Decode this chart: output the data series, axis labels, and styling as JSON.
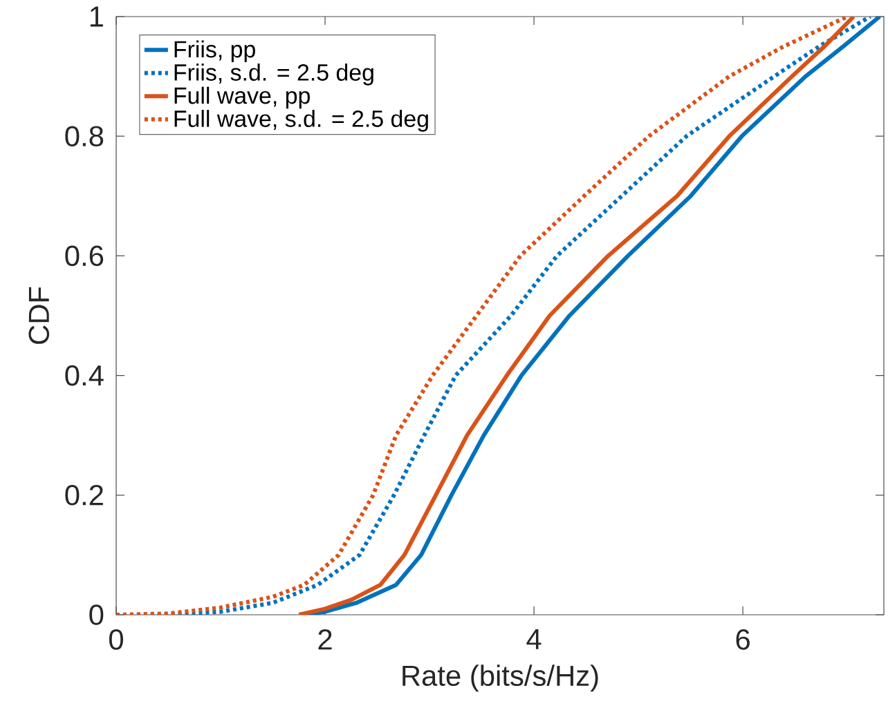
{
  "chart_data": {
    "type": "line",
    "xlabel": "Rate (bits/s/Hz)",
    "ylabel": "CDF",
    "xlim": [
      0,
      7.35
    ],
    "ylim": [
      0,
      1
    ],
    "xticks": [
      0,
      2,
      4,
      6
    ],
    "yticks": [
      0,
      0.2,
      0.4,
      0.6,
      0.8,
      1
    ],
    "legend": "top left",
    "series": [
      {
        "name": "Friis, pp",
        "color": "#0072bd",
        "line_style": "solid",
        "x": [
          1.8,
          2.0,
          2.3,
          2.68,
          2.92,
          3.21,
          3.52,
          3.88,
          4.34,
          4.9,
          5.5,
          5.99,
          6.6,
          6.96,
          7.31
        ],
        "values": [
          0,
          0.005,
          0.02,
          0.05,
          0.1,
          0.2,
          0.3,
          0.4,
          0.5,
          0.6,
          0.7,
          0.8,
          0.9,
          0.95,
          1
        ]
      },
      {
        "name": "Friis, s.d. = 2.5 deg",
        "color": "#0072bd",
        "line_style": "dotted",
        "x": [
          0,
          0.5,
          1.0,
          1.5,
          1.93,
          2.33,
          2.66,
          2.95,
          3.25,
          3.78,
          4.22,
          4.84,
          5.46,
          6.3,
          6.73,
          7.22
        ],
        "values": [
          0,
          0,
          0.005,
          0.02,
          0.05,
          0.1,
          0.2,
          0.3,
          0.4,
          0.5,
          0.6,
          0.7,
          0.8,
          0.9,
          0.95,
          1
        ]
      },
      {
        "name": "Full wave, pp",
        "color": "#d95319",
        "line_style": "solid",
        "x": [
          1.75,
          2.0,
          2.25,
          2.53,
          2.76,
          3.06,
          3.36,
          3.74,
          4.15,
          4.71,
          5.37,
          5.87,
          6.47,
          6.78,
          7.06
        ],
        "values": [
          0,
          0.01,
          0.025,
          0.05,
          0.1,
          0.2,
          0.3,
          0.4,
          0.5,
          0.6,
          0.7,
          0.8,
          0.9,
          0.95,
          1
        ]
      },
      {
        "name": "Full wave, s.d. = 2.5 deg",
        "color": "#d95319",
        "line_style": "dotted",
        "x": [
          0,
          0.5,
          1.0,
          1.5,
          1.8,
          2.13,
          2.46,
          2.68,
          3.03,
          3.45,
          3.87,
          4.48,
          5.1,
          5.87,
          6.39,
          7.0
        ],
        "values": [
          0,
          0.002,
          0.012,
          0.03,
          0.05,
          0.1,
          0.2,
          0.3,
          0.4,
          0.5,
          0.6,
          0.7,
          0.8,
          0.9,
          0.95,
          1
        ]
      }
    ]
  }
}
